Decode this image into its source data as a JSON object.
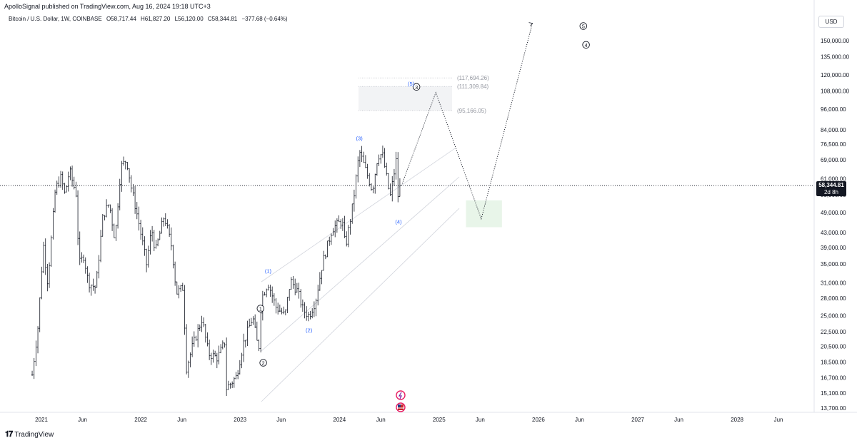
{
  "header": {
    "publish_line": "ApolloSignal published on TradingView.com, Aug 16, 2024 19:18 UTC+3",
    "symbol": "Bitcoin / U.S. Dollar, 1W, COINBASE",
    "open": "O58,717.44",
    "high": "H61,827.20",
    "low": "L56,120.00",
    "close": "C58,344.81",
    "change": "−377.68 (−0.64%)"
  },
  "currency": "USD",
  "price_tag": {
    "price": "58,344.81",
    "countdown": "2d 8h"
  },
  "footer": {
    "brand": "TradingView"
  },
  "colors": {
    "bars": "#131722",
    "wave_primary": "#131722",
    "wave_minor": "#2962ff",
    "target_zone": "#c8e6c9",
    "fib_box": "#e0e3eb",
    "channel": "#b2b5be"
  },
  "chart_data": {
    "type": "ohlc-bar",
    "symbol": "BTCUSD",
    "interval": "1W",
    "scale": "log",
    "y_tick_labels": [
      "150,000.00",
      "135,000.00",
      "120,000.00",
      "108,000.00",
      "96,000.00",
      "84,000.00",
      "76,500.00",
      "69,000.00",
      "61,000.00",
      "55,000.00",
      "49,000.00",
      "43,000.00",
      "39,000.00",
      "35,000.00",
      "31,000.00",
      "28,000.00",
      "25,000.00",
      "22,500.00",
      "20,500.00",
      "18,500.00",
      "16,700.00",
      "15,100.00",
      "13,700.00"
    ],
    "x_tick_labels": [
      "2021",
      "Jun",
      "2022",
      "Jun",
      "2023",
      "Jun",
      "2024",
      "Jun",
      "2025",
      "Jun",
      "2026",
      "Jun",
      "2027",
      "Jun",
      "2028",
      "Jun"
    ],
    "price_path": [
      [
        "2020-11-28",
        17000
      ],
      [
        "2020-12-20",
        23500
      ],
      [
        "2021-01-08",
        40000
      ],
      [
        "2021-01-24",
        31000
      ],
      [
        "2021-02-21",
        57000
      ],
      [
        "2021-03-14",
        61500
      ],
      [
        "2021-03-28",
        55000
      ],
      [
        "2021-04-14",
        64500
      ],
      [
        "2021-05-09",
        55000
      ],
      [
        "2021-05-19",
        35000
      ],
      [
        "2021-06-06",
        37000
      ],
      [
        "2021-06-22",
        31000
      ],
      [
        "2021-07-20",
        30000
      ],
      [
        "2021-08-15",
        48000
      ],
      [
        "2021-09-07",
        52000
      ],
      [
        "2021-09-28",
        41000
      ],
      [
        "2021-10-20",
        66000
      ],
      [
        "2021-11-10",
        69000
      ],
      [
        "2021-11-28",
        57000
      ],
      [
        "2021-12-22",
        47000
      ],
      [
        "2022-01-22",
        35000
      ],
      [
        "2022-02-10",
        44000
      ],
      [
        "2022-02-24",
        38000
      ],
      [
        "2022-03-28",
        48000
      ],
      [
        "2022-04-25",
        39000
      ],
      [
        "2022-05-12",
        29000
      ],
      [
        "2022-06-05",
        30000
      ],
      [
        "2022-06-18",
        17800
      ],
      [
        "2022-07-10",
        20500
      ],
      [
        "2022-08-14",
        24500
      ],
      [
        "2022-09-07",
        19500
      ],
      [
        "2022-10-10",
        19000
      ],
      [
        "2022-11-05",
        21000
      ],
      [
        "2022-11-09",
        15500
      ],
      [
        "2022-12-18",
        16800
      ],
      [
        "2023-01-14",
        21000
      ],
      [
        "2023-02-16",
        24800
      ],
      [
        "2023-03-10",
        19800
      ],
      [
        "2023-03-20",
        28000
      ],
      [
        "2023-04-14",
        31000
      ],
      [
        "2023-05-12",
        26500
      ],
      [
        "2023-06-15",
        25000
      ],
      [
        "2023-07-05",
        31500
      ],
      [
        "2023-08-01",
        29200
      ],
      [
        "2023-08-20",
        26000
      ],
      [
        "2023-09-11",
        25000
      ],
      [
        "2023-10-05",
        27500
      ],
      [
        "2023-10-30",
        35000
      ],
      [
        "2023-12-05",
        44000
      ],
      [
        "2024-01-11",
        46500
      ],
      [
        "2024-01-23",
        39000
      ],
      [
        "2024-02-20",
        52000
      ],
      [
        "2024-03-14",
        73000
      ],
      [
        "2024-04-17",
        61000
      ],
      [
        "2024-05-01",
        56500
      ],
      [
        "2024-05-21",
        71000
      ],
      [
        "2024-06-07",
        71500
      ],
      [
        "2024-07-05",
        54000
      ],
      [
        "2024-07-29",
        70000
      ],
      [
        "2024-08-05",
        49500
      ],
      [
        "2024-08-16",
        58344.81
      ]
    ],
    "last_price": 58344.81,
    "projection": [
      [
        "2024-08-16",
        58344.81
      ],
      [
        "2024-12-20",
        107000
      ],
      [
        "2025-06-05",
        47000
      ],
      [
        "2025-12-10",
        168000
      ]
    ],
    "fib_levels": [
      {
        "label": "(117,694.26)",
        "value": 117694.26
      },
      {
        "label": "(111,309.84)",
        "value": 111309.84
      },
      {
        "label": "(95,166.05)",
        "value": 95166.05
      }
    ],
    "target_box": {
      "from": "2025-04-10",
      "to": "2025-08-20",
      "top": 53000,
      "bottom": 44500
    },
    "wave_labels_primary": [
      {
        "text": "1",
        "date": "2023-03-17",
        "price": 26200
      },
      {
        "text": "2",
        "date": "2023-03-27",
        "price": 18400
      },
      {
        "text": "3",
        "date": "2024-10-10",
        "price": 111000
      },
      {
        "text": "4",
        "date": "2026-06-25",
        "price": 146000
      },
      {
        "text": "5",
        "date": "2026-06-15",
        "price": 165000
      }
    ],
    "wave_labels_minor": [
      {
        "text": "(1)",
        "date": "2023-04-14",
        "price": 33500
      },
      {
        "text": "(2)",
        "date": "2023-09-11",
        "price": 22800
      },
      {
        "text": "(3)",
        "date": "2024-03-14",
        "price": 79500
      },
      {
        "text": "(4)",
        "date": "2024-08-05",
        "price": 46200
      },
      {
        "text": "(5)",
        "date": "2024-09-20",
        "price": 113500
      }
    ]
  }
}
